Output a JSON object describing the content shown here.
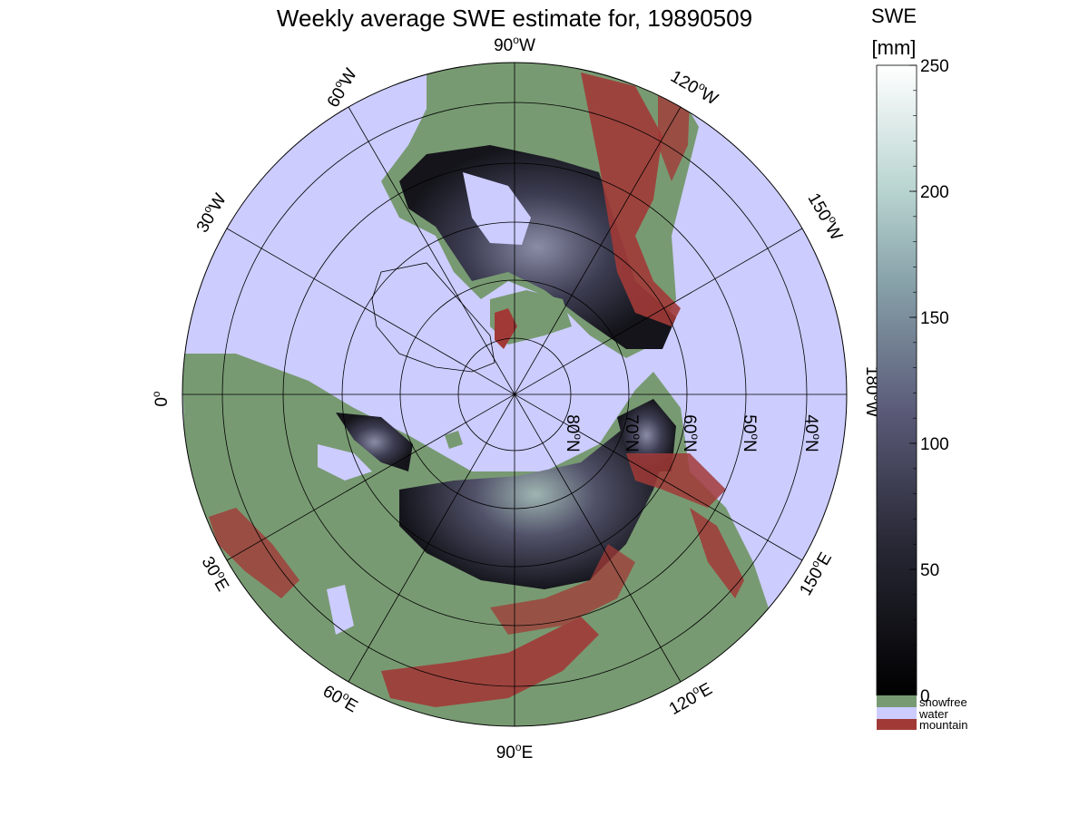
{
  "figure": {
    "title": "Weekly average SWE estimate for, 19890509",
    "colorbar": {
      "header": "SWE",
      "unit": "[mm]",
      "ticks": [
        250,
        200,
        150,
        100,
        50,
        0
      ],
      "range": [
        0,
        250
      ]
    },
    "legend": [
      {
        "label": "snowfree",
        "color": "#789a72"
      },
      {
        "label": "water",
        "color": "#ccccff"
      },
      {
        "label": "mountain",
        "color": "#a13a37"
      }
    ],
    "longitude_labels": [
      {
        "base": "90",
        "deg": "o",
        "suffix": "W"
      },
      {
        "base": "60",
        "deg": "o",
        "suffix": "W"
      },
      {
        "base": "120",
        "deg": "o",
        "suffix": "W"
      },
      {
        "base": "30",
        "deg": "o",
        "suffix": "W"
      },
      {
        "base": "150",
        "deg": "o",
        "suffix": "W"
      },
      {
        "base": "0",
        "deg": "o",
        "suffix": ""
      },
      {
        "base": "180",
        "deg": "o",
        "suffix": "W"
      },
      {
        "base": "30",
        "deg": "o",
        "suffix": "E"
      },
      {
        "base": "150",
        "deg": "o",
        "suffix": "E"
      },
      {
        "base": "60",
        "deg": "o",
        "suffix": "E"
      },
      {
        "base": "120",
        "deg": "o",
        "suffix": "E"
      },
      {
        "base": "90",
        "deg": "o",
        "suffix": "E"
      }
    ],
    "latitude_labels": [
      {
        "base": "80",
        "deg": "o",
        "suffix": "N"
      },
      {
        "base": "70",
        "deg": "o",
        "suffix": "N"
      },
      {
        "base": "60",
        "deg": "o",
        "suffix": "N"
      },
      {
        "base": "50",
        "deg": "o",
        "suffix": "N"
      },
      {
        "base": "40",
        "deg": "o",
        "suffix": "N"
      }
    ],
    "colors": {
      "water": "#ccccff",
      "snowfree": "#789a72",
      "mountain": "#a13a37",
      "swe_low": "#000000",
      "swe_mid": "#5a5a78",
      "swe_high": "#ffffff"
    }
  }
}
